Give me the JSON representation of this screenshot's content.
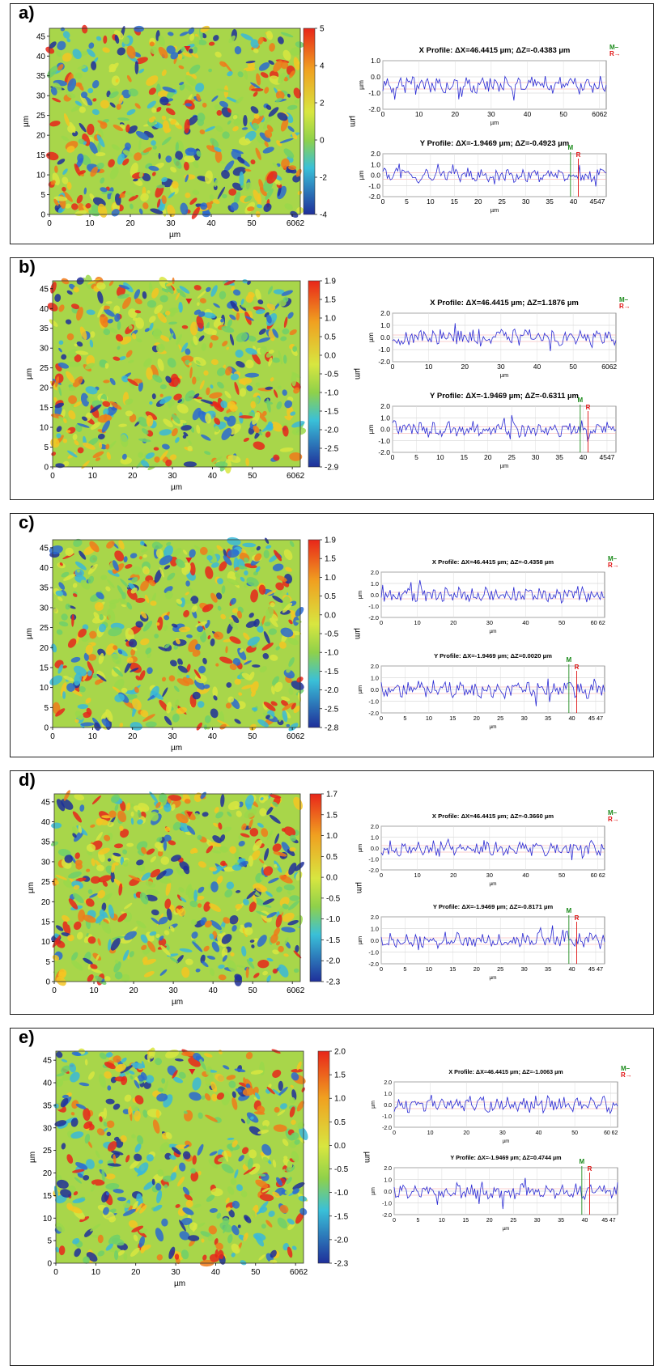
{
  "panels": [
    {
      "label": "a)",
      "map": {
        "x_ticks": [
          "0",
          "10",
          "20",
          "30",
          "40",
          "50",
          "6062"
        ],
        "y_ticks": [
          "0",
          "5",
          "10",
          "15",
          "20",
          "25",
          "30",
          "35",
          "40",
          "45"
        ],
        "xlabel": "µm",
        "ylabel": "µm",
        "zlabel": "µm",
        "colorbar_ticks": [
          "5",
          "4",
          "2",
          "0",
          "-2",
          "-4"
        ]
      },
      "xprofile": {
        "title": "X Profile: ΔX=46.4415 µm; ΔZ=-0.4383 µm",
        "yticks": [
          "1.0",
          "0.0",
          "-1.0",
          "-2.0"
        ],
        "xticks": [
          "0",
          "10",
          "20",
          "30",
          "40",
          "50",
          "6062"
        ],
        "ylabel": "µm",
        "xlabel": "µm"
      },
      "yprofile": {
        "title": "Y Profile: ΔX=-1.9469 µm; ΔZ=-0.4923 µm",
        "yticks": [
          "2.0",
          "1.0",
          "0.0",
          "-1.0",
          "-2.0"
        ],
        "xticks": [
          "0",
          "5",
          "10",
          "15",
          "20",
          "25",
          "30",
          "35",
          "40",
          "4547"
        ],
        "ylabel": "µm",
        "xlabel": "µm"
      },
      "markers": {
        "m": "M",
        "r": "R"
      }
    },
    {
      "label": "b)",
      "map": {
        "x_ticks": [
          "0",
          "10",
          "20",
          "30",
          "40",
          "50",
          "6062"
        ],
        "y_ticks": [
          "0",
          "5",
          "10",
          "15",
          "20",
          "25",
          "30",
          "35",
          "40",
          "45"
        ],
        "xlabel": "µm",
        "ylabel": "µm",
        "zlabel": "µm",
        "colorbar_ticks": [
          "1.9",
          "1.5",
          "1.0",
          "0.5",
          "0.0",
          "-0.5",
          "-1.0",
          "-1.5",
          "-2.0",
          "-2.5",
          "-2.9"
        ]
      },
      "xprofile": {
        "title": "X Profile: ΔX=46.4415 µm; ΔZ=1.1876 µm",
        "yticks": [
          "2.0",
          "1.0",
          "0.0",
          "-1.0",
          "-2.0"
        ],
        "xticks": [
          "0",
          "10",
          "20",
          "30",
          "40",
          "50",
          "6062"
        ],
        "ylabel": "µm",
        "xlabel": "µm"
      },
      "yprofile": {
        "title": "Y Profile: ΔX=-1.9469 µm; ΔZ=-0.6311 µm",
        "yticks": [
          "2.0",
          "1.0",
          "0.0",
          "-1.0",
          "-2.0"
        ],
        "xticks": [
          "0",
          "5",
          "10",
          "15",
          "20",
          "25",
          "30",
          "35",
          "40",
          "4547"
        ],
        "ylabel": "µm",
        "xlabel": "µm"
      },
      "markers": {
        "m": "M",
        "r": "R"
      }
    },
    {
      "label": "c)",
      "map": {
        "x_ticks": [
          "0",
          "10",
          "20",
          "30",
          "40",
          "50",
          "6062"
        ],
        "y_ticks": [
          "0",
          "5",
          "10",
          "15",
          "20",
          "25",
          "30",
          "35",
          "40",
          "45"
        ],
        "xlabel": "µm",
        "ylabel": "µm",
        "zlabel": "µm",
        "colorbar_ticks": [
          "1.9",
          "1.5",
          "1.0",
          "0.5",
          "0.0",
          "-0.5",
          "-1.0",
          "-1.5",
          "-2.0",
          "-2.5",
          "-2.8"
        ]
      },
      "xprofile": {
        "title": "X Profile: ΔX=46.4415 µm; ΔZ=-0.4358 µm",
        "yticks": [
          "2.0",
          "1.0",
          "0.0",
          "-1.0",
          "-2.0"
        ],
        "xticks": [
          "0",
          "10",
          "20",
          "30",
          "40",
          "50",
          "60 62"
        ],
        "ylabel": "µm",
        "xlabel": "µm"
      },
      "yprofile": {
        "title": "Y Profile: ΔX=-1.9469 µm; ΔZ=0.0020 µm",
        "yticks": [
          "2.0",
          "1.0",
          "0.0",
          "-1.0",
          "-2.0"
        ],
        "xticks": [
          "0",
          "5",
          "10",
          "15",
          "20",
          "25",
          "30",
          "35",
          "40",
          "45 47"
        ],
        "ylabel": "µm",
        "xlabel": "µm"
      },
      "markers": {
        "m": "M",
        "r": "R"
      }
    },
    {
      "label": "d)",
      "map": {
        "x_ticks": [
          "0",
          "10",
          "20",
          "30",
          "40",
          "50",
          "6062"
        ],
        "y_ticks": [
          "0",
          "5",
          "10",
          "15",
          "20",
          "25",
          "30",
          "35",
          "40",
          "45"
        ],
        "xlabel": "µm",
        "ylabel": "µm",
        "zlabel": "µm",
        "colorbar_ticks": [
          "1.7",
          "1.5",
          "1.0",
          "0.5",
          "0.0",
          "-0.5",
          "-1.0",
          "-1.5",
          "-2.0",
          "-2.3"
        ]
      },
      "xprofile": {
        "title": "X Profile: ΔX=46.4415 µm; ΔZ=-0.3660 µm",
        "yticks": [
          "2.0",
          "1.0",
          "0.0",
          "-1.0",
          "-2.0"
        ],
        "xticks": [
          "0",
          "10",
          "20",
          "30",
          "40",
          "50",
          "60 62"
        ],
        "ylabel": "µm",
        "xlabel": "µm"
      },
      "yprofile": {
        "title": "Y Profile: ΔX=-1.9469 µm; ΔZ=-0.8171 µm",
        "yticks": [
          "2.0",
          "1.0",
          "0.0",
          "-1.0",
          "-2.0"
        ],
        "xticks": [
          "0",
          "5",
          "10",
          "15",
          "20",
          "25",
          "30",
          "35",
          "40",
          "45 47"
        ],
        "ylabel": "µm",
        "xlabel": "µm"
      },
      "markers": {
        "m": "M",
        "r": "R"
      }
    },
    {
      "label": "e)",
      "map": {
        "x_ticks": [
          "0",
          "10",
          "20",
          "30",
          "40",
          "50",
          "6062"
        ],
        "y_ticks": [
          "0",
          "5",
          "10",
          "15",
          "20",
          "25",
          "30",
          "35",
          "40",
          "45"
        ],
        "xlabel": "µm",
        "ylabel": "µm",
        "zlabel": "µm",
        "colorbar_ticks": [
          "2.0",
          "1.5",
          "1.0",
          "0.5",
          "0.0",
          "-0.5",
          "-1.0",
          "-1.5",
          "-2.0",
          "-2.3"
        ]
      },
      "xprofile": {
        "title": "X Profile: ΔX=46.4415 µm; ΔZ=-1.0063 µm",
        "yticks": [
          "2.0",
          "1.0",
          "0.0",
          "-1.0",
          "-2.0"
        ],
        "xticks": [
          "0",
          "10",
          "20",
          "30",
          "40",
          "50",
          "60 62"
        ],
        "ylabel": "µm",
        "xlabel": "µm"
      },
      "yprofile": {
        "title": "Y Profile: ΔX=-1.9469 µm; ΔZ=0.4744 µm",
        "yticks": [
          "2.0",
          "1.0",
          "0.0",
          "-1.0",
          "-2.0"
        ],
        "xticks": [
          "0",
          "5",
          "10",
          "15",
          "20",
          "25",
          "30",
          "35",
          "40",
          "45 47"
        ],
        "ylabel": "µm",
        "xlabel": "µm"
      },
      "markers": {
        "m": "M",
        "r": "R"
      }
    }
  ],
  "colors": {
    "high": "#e8261a",
    "mid": "#8fd14a",
    "low": "#1f2f9a",
    "profile_line": "#2a2ad4",
    "m_line": "#1a8a1a",
    "r_line": "#e01010"
  }
}
